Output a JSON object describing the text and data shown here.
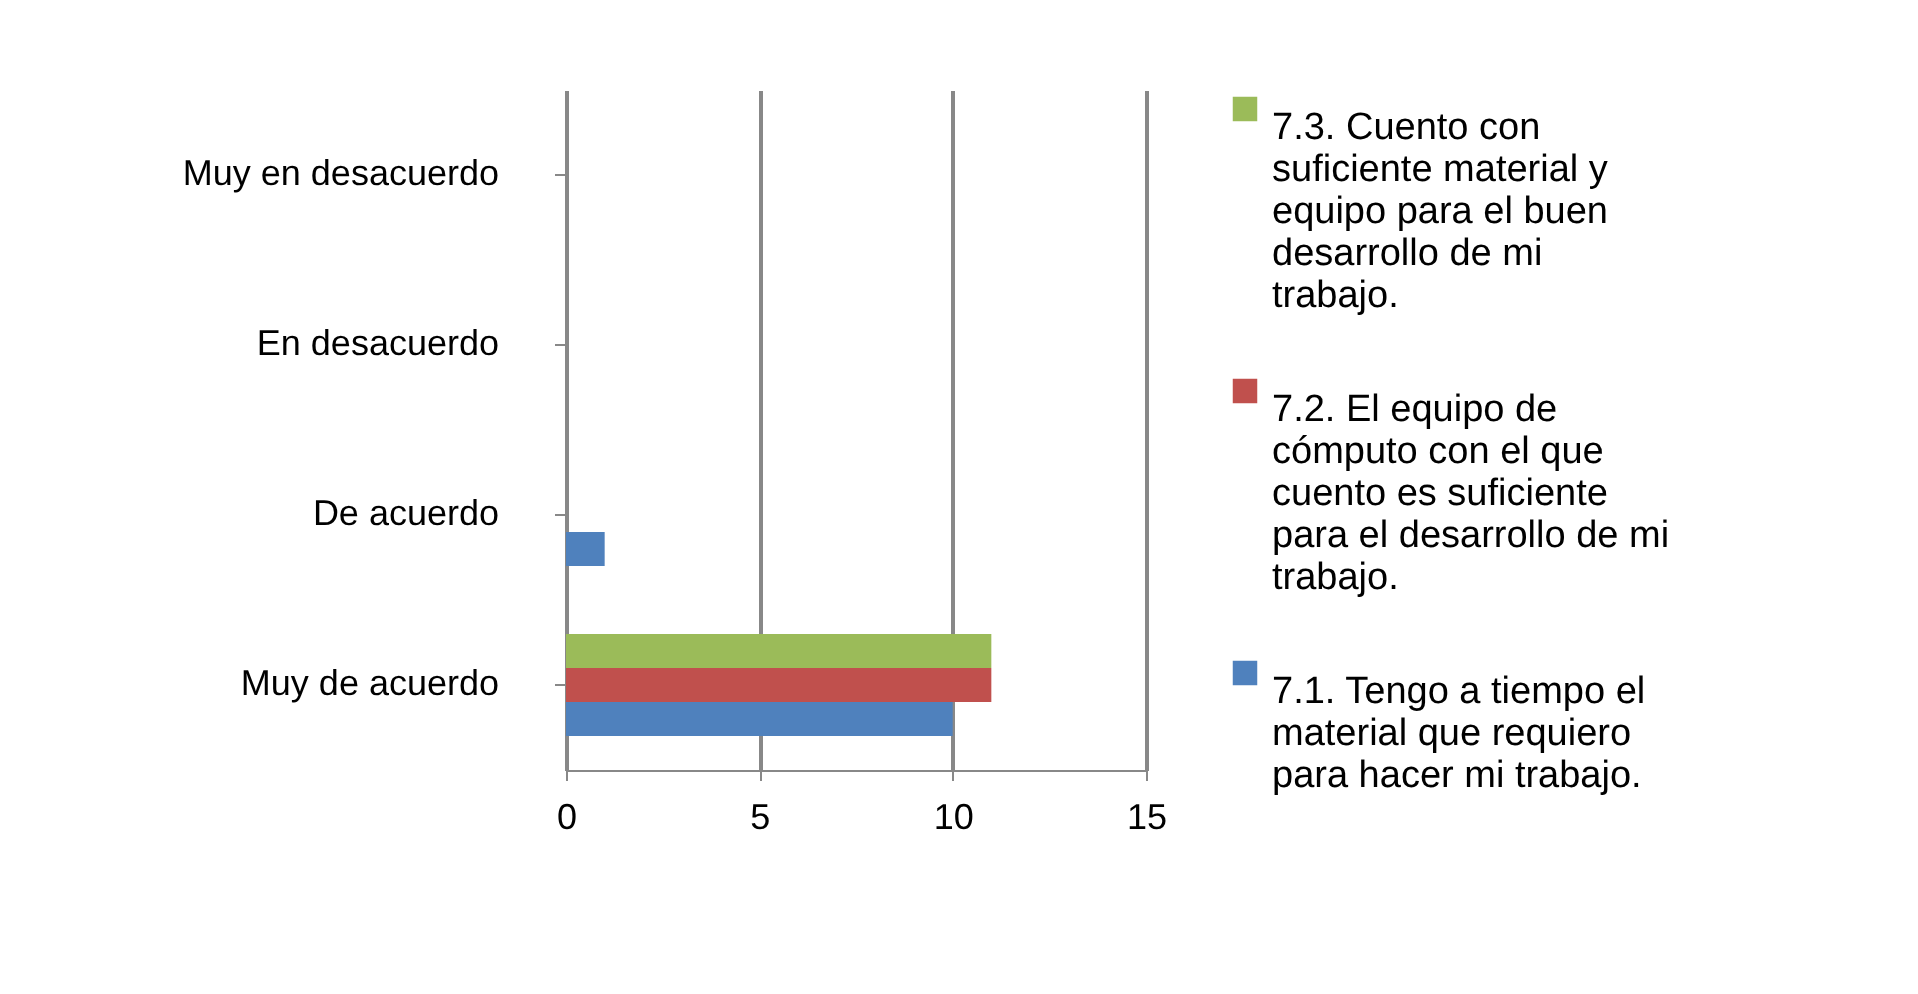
{
  "chart_data": {
    "type": "bar",
    "orientation": "horizontal",
    "categories": [
      "Muy en desacuerdo",
      "En desacuerdo",
      "De acuerdo",
      "Muy de acuerdo"
    ],
    "series": [
      {
        "name": "7.3. Cuento con suficiente material y equipo para el buen desarrollo de mi trabajo.",
        "color": "#9bbb59",
        "values": [
          null,
          null,
          null,
          11
        ]
      },
      {
        "name": "7.2. El equipo de cómputo con el que cuento es suficiente para el desarrollo de mi trabajo.",
        "color": "#c0504d",
        "values": [
          null,
          null,
          null,
          11
        ]
      },
      {
        "name": "7.1. Tengo a tiempo el material que requiero para hacer mi trabajo.",
        "color": "#4f81bd",
        "values": [
          null,
          null,
          1,
          10
        ]
      }
    ],
    "xlim": [
      0,
      15
    ],
    "xticks": [
      0,
      5,
      10,
      15
    ],
    "grid": "x",
    "legend": "right"
  }
}
